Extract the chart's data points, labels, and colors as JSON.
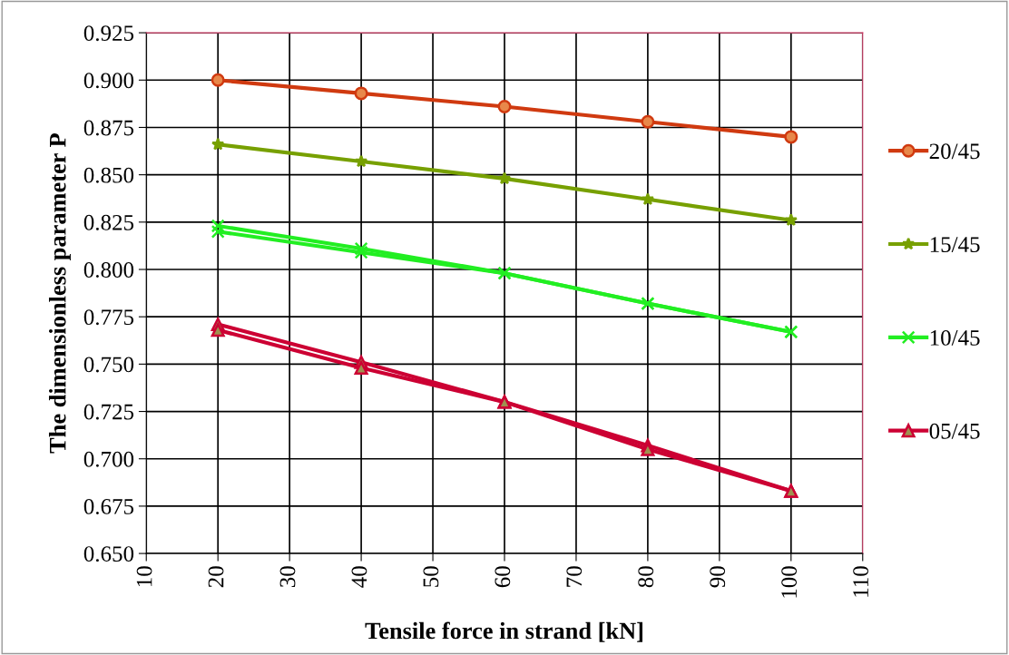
{
  "chart_data": {
    "type": "line",
    "xlabel": "Tensile force in strand [kN]",
    "ylabel": "The dimensionless parameter P",
    "xlim": [
      10,
      110
    ],
    "xticks": [
      10,
      20,
      30,
      40,
      50,
      60,
      70,
      80,
      90,
      100,
      110
    ],
    "ylim": [
      0.65,
      0.925
    ],
    "yticks": [
      {
        "value": 0.65,
        "label": "0.650"
      },
      {
        "value": 0.675,
        "label": "0.675"
      },
      {
        "value": 0.7,
        "label": "0.700"
      },
      {
        "value": 0.725,
        "label": "0.725"
      },
      {
        "value": 0.75,
        "label": "0.750"
      },
      {
        "value": 0.775,
        "label": "0.775"
      },
      {
        "value": 0.8,
        "label": "0.800"
      },
      {
        "value": 0.825,
        "label": "0.825"
      },
      {
        "value": 0.85,
        "label": "0.850"
      },
      {
        "value": 0.875,
        "label": "0.875"
      },
      {
        "value": 0.9,
        "label": "0.900"
      },
      {
        "value": 0.925,
        "label": "0.925"
      }
    ],
    "grid": true,
    "legend": "right",
    "x": [
      20,
      40,
      60,
      80,
      100
    ],
    "series": [
      {
        "name": "20/45",
        "color": "#d03a10",
        "marker": "circle",
        "values": [
          0.9,
          0.893,
          0.886,
          0.878,
          0.87
        ]
      },
      {
        "name": "15/45",
        "color": "#77a000",
        "marker": "star",
        "values": [
          0.866,
          0.857,
          0.848,
          0.837,
          0.826
        ]
      },
      {
        "name": "10/45",
        "color": "#22ee22",
        "marker": "cross",
        "values": [
          0.823,
          0.811,
          0.798,
          0.782,
          0.767
        ]
      },
      {
        "color": "#22ee22",
        "marker": "cross",
        "values": [
          0.82,
          0.809,
          0.798,
          0.782,
          0.767
        ]
      },
      {
        "name": "05/45",
        "color": "#cc0033",
        "marker": "triangle",
        "values": [
          0.771,
          0.751,
          0.73,
          0.707,
          0.683
        ]
      },
      {
        "color": "#cc0033",
        "marker": "triangle",
        "values": [
          0.768,
          0.748,
          0.73,
          0.705,
          0.683
        ]
      }
    ]
  }
}
